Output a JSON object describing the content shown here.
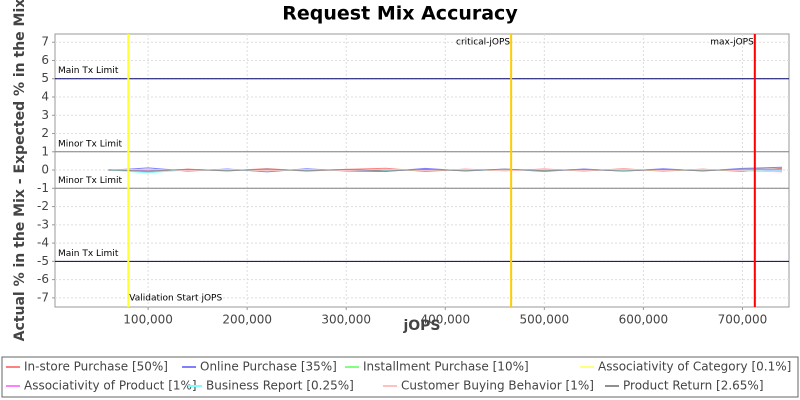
{
  "chart_data": {
    "type": "line",
    "title": "Request Mix Accuracy",
    "x_label": "jOPS",
    "y_label": "Actual % in the Mix - Expected % in the Mix",
    "x": [
      60000,
      100000,
      140000,
      180000,
      220000,
      260000,
      300000,
      340000,
      380000,
      420000,
      460000,
      500000,
      540000,
      580000,
      620000,
      660000,
      700000,
      740000
    ],
    "series": [
      {
        "name": "In-store Purchase [50%]",
        "color": "#ff8080",
        "values": [
          0.02,
          -0.1,
          0.05,
          -0.05,
          0.08,
          -0.06,
          0.04,
          0.1,
          -0.08,
          0.05,
          -0.04,
          0.06,
          -0.05,
          0.07,
          -0.06,
          0.05,
          -0.08,
          0.1
        ]
      },
      {
        "name": "Online Purchase [35%]",
        "color": "#8080ff",
        "values": [
          -0.02,
          0.12,
          -0.06,
          0.06,
          -0.1,
          0.07,
          -0.05,
          -0.08,
          0.09,
          -0.05,
          0.05,
          -0.07,
          0.06,
          -0.06,
          0.07,
          -0.05,
          0.09,
          0.15
        ]
      },
      {
        "name": "Installment Purchase [10%]",
        "color": "#80ff80",
        "values": [
          0,
          0.03,
          -0.02,
          0.02,
          -0.03,
          0.02,
          -0.02,
          0.03,
          -0.02,
          0.02,
          -0.03,
          0.02,
          -0.02,
          0.03,
          -0.02,
          0.02,
          -0.03,
          0.03
        ]
      },
      {
        "name": "Associativity of Category [0.1%]",
        "color": "#ffff80",
        "values": [
          0,
          0.01,
          -0.01,
          0.01,
          0,
          -0.01,
          0.01,
          0,
          -0.01,
          0.01,
          0,
          -0.01,
          0.01,
          0,
          -0.01,
          0.01,
          0,
          -0.02
        ]
      },
      {
        "name": "Associativity of Product [1%]",
        "color": "#ff80ff",
        "values": [
          0,
          -0.03,
          0.02,
          -0.02,
          0.03,
          -0.02,
          0.02,
          -0.03,
          0.02,
          -0.02,
          0.03,
          -0.02,
          0.02,
          -0.03,
          0.02,
          -0.02,
          0.03,
          -0.05
        ]
      },
      {
        "name": "Business Report [0.25%]",
        "color": "#80ffff",
        "values": [
          0,
          -0.15,
          0.01,
          -0.01,
          0.01,
          -0.01,
          0.01,
          -0.01,
          0.01,
          -0.01,
          0.01,
          -0.01,
          0.01,
          -0.01,
          0.01,
          -0.01,
          0.01,
          -0.01
        ]
      },
      {
        "name": "Customer Buying Behavior [1%]",
        "color": "#ffc0c0",
        "values": [
          0,
          0.04,
          -0.03,
          0.03,
          -0.04,
          0.03,
          -0.03,
          0.04,
          -0.03,
          0.03,
          -0.04,
          0.03,
          -0.03,
          0.04,
          -0.03,
          0.03,
          -0.04,
          -0.1
        ]
      },
      {
        "name": "Product Return [2.65%]",
        "color": "#909090",
        "values": [
          0,
          -0.05,
          0.04,
          -0.04,
          0.05,
          -0.04,
          0.04,
          -0.05,
          0.04,
          -0.04,
          0.05,
          -0.04,
          0.04,
          -0.05,
          0.04,
          -0.04,
          0.05,
          0.05
        ]
      }
    ],
    "xlim": [
      6000,
      747000
    ],
    "ylim": [
      -7.5,
      7.45
    ],
    "xticks": [
      {
        "value": 100000,
        "label": "100,000"
      },
      {
        "value": 200000,
        "label": "200,000"
      },
      {
        "value": 300000,
        "label": "300,000"
      },
      {
        "value": 400000,
        "label": "400,000"
      },
      {
        "value": 500000,
        "label": "500,000"
      },
      {
        "value": 600000,
        "label": "600,000"
      },
      {
        "value": 700000,
        "label": "700,000"
      }
    ],
    "yticks": [
      -7,
      -6,
      -5,
      -4,
      -3,
      -2,
      -1,
      0,
      1,
      2,
      3,
      4,
      5,
      6,
      7
    ],
    "grid": true,
    "hlines": [
      {
        "value": 5,
        "label": "Main Tx Limit",
        "color": "#000066"
      },
      {
        "value": 1,
        "label": "Minor Tx Limit",
        "color": "#808080"
      },
      {
        "value": -1,
        "label": "Minor Tx Limit",
        "color": "#808080"
      },
      {
        "value": -5,
        "label": "Main Tx Limit",
        "color": "#000066"
      }
    ],
    "vlines": [
      {
        "value": 80000,
        "label": "Validation Start jOPS",
        "color": "#ffff33"
      },
      {
        "value": 466500,
        "label": "critical-jOPS",
        "color": "#ffcc00"
      },
      {
        "value": 712500,
        "label": "max-jOPS",
        "color": "#ff0000"
      }
    ]
  }
}
